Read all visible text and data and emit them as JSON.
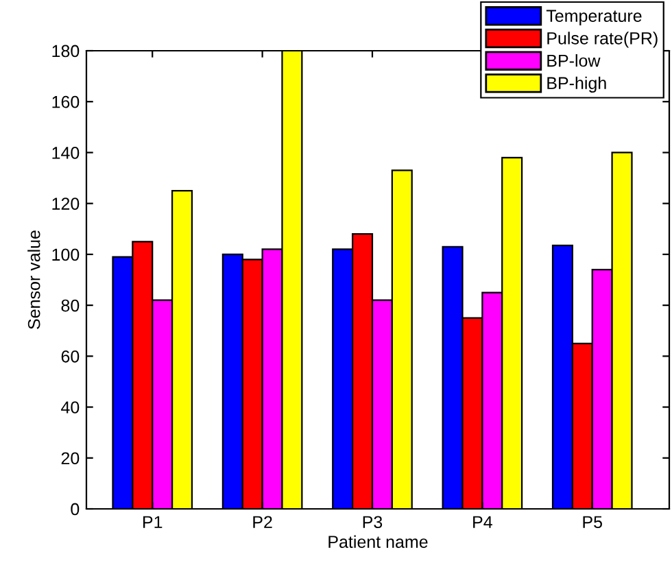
{
  "chart_data": {
    "type": "bar",
    "xlabel": "Patient name",
    "ylabel": "Sensor value",
    "categories": [
      "P1",
      "P2",
      "P3",
      "P4",
      "P5"
    ],
    "series": [
      {
        "name": "Temperature",
        "color": "#0000ff",
        "values": [
          99,
          100,
          102,
          103,
          103.5
        ]
      },
      {
        "name": "Pulse rate(PR)",
        "color": "#ff0000",
        "values": [
          105,
          98,
          108,
          75,
          65
        ]
      },
      {
        "name": "BP-low",
        "color": "#ff00ff",
        "values": [
          82,
          102,
          82,
          85,
          94
        ]
      },
      {
        "name": "BP-high",
        "color": "#ffff00",
        "values": [
          125,
          180,
          133,
          138,
          140
        ]
      }
    ],
    "ylim": [
      0,
      180
    ],
    "yticks": [
      0,
      20,
      40,
      60,
      80,
      100,
      120,
      140,
      160,
      180
    ],
    "grid": false,
    "legend": "top right"
  }
}
